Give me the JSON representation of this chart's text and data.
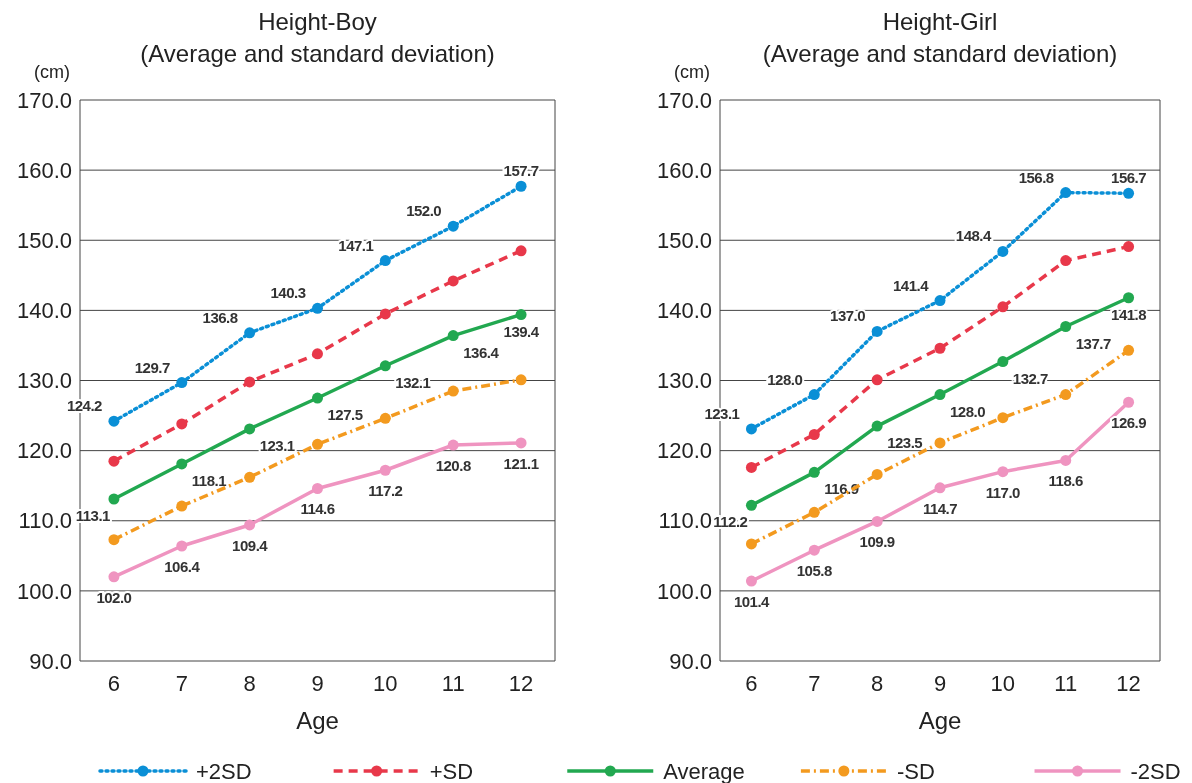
{
  "chart_data": [
    {
      "type": "line",
      "title": "Height-Boy",
      "subtitle": "(Average and standard deviation)",
      "ylabel": "(cm)",
      "xlabel": "Age",
      "categories": [
        "6",
        "7",
        "8",
        "9",
        "10",
        "11",
        "12"
      ],
      "ylim": [
        90,
        170
      ],
      "yticks": [
        {
          "value": 90,
          "label": "90.0"
        },
        {
          "value": 100,
          "label": "100.0"
        },
        {
          "value": 110,
          "label": "110.0"
        },
        {
          "value": 120,
          "label": "120.0"
        },
        {
          "value": 130,
          "label": "130.0"
        },
        {
          "value": 140,
          "label": "140.0"
        },
        {
          "value": 150,
          "label": "150.0"
        },
        {
          "value": 160,
          "label": "160.0"
        },
        {
          "value": 170,
          "label": "170.0"
        }
      ],
      "grid": "y",
      "marker": "circle",
      "legend": "bottom",
      "series": [
        {
          "name": "+2SD",
          "color": "#0a8fd6",
          "line_style": "dotted",
          "values": [
            124.2,
            129.7,
            136.8,
            140.3,
            147.1,
            152.0,
            157.7
          ],
          "value_labels": [
            "124.2",
            "129.7",
            "136.8",
            "140.3",
            "147.1",
            "152.0",
            "157.7"
          ]
        },
        {
          "name": "+SD",
          "color": "#e8384a",
          "line_style": "dashed",
          "values": [
            118.5,
            123.8,
            129.8,
            133.8,
            139.5,
            144.2,
            148.5
          ]
        },
        {
          "name": "Average",
          "color": "#22a850",
          "line_style": "solid",
          "values": [
            113.1,
            118.1,
            123.1,
            127.5,
            132.1,
            136.4,
            139.4
          ],
          "value_labels": [
            "113.1",
            "118.1",
            "123.1",
            "127.5",
            "132.1",
            "136.4",
            "139.4"
          ]
        },
        {
          "name": "-SD",
          "color": "#f39a1f",
          "line_style": "dashdot",
          "values": [
            107.3,
            112.1,
            116.2,
            120.9,
            124.6,
            128.5,
            130.1
          ]
        },
        {
          "name": "-2SD",
          "color": "#ef94c0",
          "line_style": "solid",
          "values": [
            102.0,
            106.4,
            109.4,
            114.6,
            117.2,
            120.8,
            121.1
          ],
          "value_labels": [
            "102.0",
            "106.4",
            "109.4",
            "114.6",
            "117.2",
            "120.8",
            "121.1"
          ]
        }
      ]
    },
    {
      "type": "line",
      "title": "Height-Girl",
      "subtitle": "(Average and standard deviation)",
      "ylabel": "(cm)",
      "xlabel": "Age",
      "categories": [
        "6",
        "7",
        "8",
        "9",
        "10",
        "11",
        "12"
      ],
      "ylim": [
        90,
        170
      ],
      "yticks": [
        {
          "value": 90,
          "label": "90.0"
        },
        {
          "value": 100,
          "label": "100.0"
        },
        {
          "value": 110,
          "label": "110.0"
        },
        {
          "value": 120,
          "label": "120.0"
        },
        {
          "value": 130,
          "label": "130.0"
        },
        {
          "value": 140,
          "label": "140.0"
        },
        {
          "value": 150,
          "label": "150.0"
        },
        {
          "value": 160,
          "label": "160.0"
        },
        {
          "value": 170,
          "label": "170.0"
        }
      ],
      "grid": "y",
      "marker": "circle",
      "series": [
        {
          "color": "#0a8fd6",
          "line_style": "dotted",
          "values": [
            123.1,
            128.0,
            137.0,
            141.4,
            148.4,
            156.8,
            156.7
          ],
          "value_labels": [
            "123.1",
            "128.0",
            "137.0",
            "141.4",
            "148.4",
            "156.8",
            "156.7"
          ]
        },
        {
          "color": "#e8384a",
          "line_style": "dashed",
          "values": [
            117.6,
            122.3,
            130.1,
            134.6,
            140.5,
            147.1,
            149.1
          ]
        },
        {
          "color": "#22a850",
          "line_style": "solid",
          "values": [
            112.2,
            116.9,
            123.5,
            128.0,
            132.7,
            137.7,
            141.8
          ],
          "value_labels": [
            "112.2",
            "116.9",
            "123.5",
            "128.0",
            "132.7",
            "137.7",
            "141.8"
          ]
        },
        {
          "color": "#f39a1f",
          "line_style": "dashdot",
          "values": [
            106.7,
            111.2,
            116.6,
            121.1,
            124.7,
            128.0,
            134.3
          ]
        },
        {
          "color": "#ef94c0",
          "line_style": "solid",
          "values": [
            101.4,
            105.8,
            109.9,
            114.7,
            117.0,
            118.6,
            126.9
          ],
          "value_labels": [
            "101.4",
            "105.8",
            "109.9",
            "114.7",
            "117.0",
            "118.6",
            "126.9"
          ]
        }
      ]
    }
  ]
}
